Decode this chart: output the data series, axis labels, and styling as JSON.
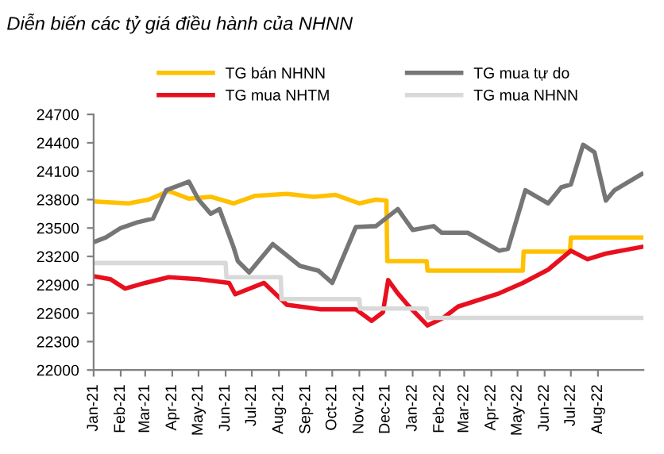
{
  "chart_data": {
    "type": "line",
    "title": "Diễn biến các tỷ giá điều hành của NHNN",
    "series": [
      {
        "name": "TG bán NHNN",
        "color": "#ffc000",
        "x": [
          "2021-01-01",
          "2021-02-10",
          "2021-03-05",
          "2021-03-28",
          "2021-04-20",
          "2021-05-15",
          "2021-06-10",
          "2021-07-05",
          "2021-08-10",
          "2021-09-10",
          "2021-10-05",
          "2021-11-01",
          "2021-11-20",
          "2021-12-02",
          "2021-12-03",
          "2022-01-17",
          "2022-01-18",
          "2022-05-07",
          "2022-05-08",
          "2022-06-30",
          "2022-07-01",
          "2022-09-20"
        ],
        "values": [
          23780,
          23760,
          23800,
          23890,
          23810,
          23830,
          23760,
          23840,
          23860,
          23830,
          23850,
          23760,
          23800,
          23790,
          23150,
          23150,
          23050,
          23050,
          23250,
          23250,
          23400,
          23400
        ]
      },
      {
        "name": "TG mua NHTM",
        "color": "#e8101f",
        "x": [
          "2021-01-01",
          "2021-01-20",
          "2021-02-06",
          "2021-03-01",
          "2021-03-28",
          "2021-05-01",
          "2021-06-05",
          "2021-06-12",
          "2021-07-15",
          "2021-08-10",
          "2021-09-18",
          "2021-10-28",
          "2021-11-15",
          "2021-11-28",
          "2021-12-04",
          "2021-12-15",
          "2021-12-28",
          "2022-01-18",
          "2022-02-05",
          "2022-02-22",
          "2022-04-10",
          "2022-05-07",
          "2022-06-05",
          "2022-07-01",
          "2022-07-20",
          "2022-08-10",
          "2022-09-20"
        ],
        "values": [
          22990,
          22960,
          22860,
          22920,
          22980,
          22960,
          22920,
          22800,
          22920,
          22690,
          22640,
          22640,
          22520,
          22610,
          22950,
          22810,
          22670,
          22470,
          22550,
          22670,
          22810,
          22920,
          23060,
          23260,
          23170,
          23230,
          23300
        ]
      },
      {
        "name": "TG mua tự do",
        "color": "#767676",
        "x": [
          "2021-01-01",
          "2021-01-15",
          "2021-02-01",
          "2021-02-20",
          "2021-03-10",
          "2021-03-25",
          "2021-04-20",
          "2021-05-01",
          "2021-05-15",
          "2021-05-25",
          "2021-06-10",
          "2021-06-15",
          "2021-06-28",
          "2021-07-25",
          "2021-08-25",
          "2021-09-15",
          "2021-10-01",
          "2021-10-28",
          "2021-11-20",
          "2021-12-15",
          "2022-01-01",
          "2022-01-25",
          "2022-02-03",
          "2022-03-05",
          "2022-04-10",
          "2022-04-20",
          "2022-05-10",
          "2022-06-05",
          "2022-06-20",
          "2022-07-01",
          "2022-07-15",
          "2022-07-28",
          "2022-08-10",
          "2022-08-20",
          "2022-09-20"
        ],
        "values": [
          23350,
          23400,
          23500,
          23560,
          23600,
          23900,
          23990,
          23800,
          23650,
          23700,
          23300,
          23150,
          23030,
          23330,
          23100,
          23050,
          22920,
          23510,
          23520,
          23700,
          23480,
          23520,
          23450,
          23450,
          23260,
          23280,
          23900,
          23760,
          23930,
          23960,
          24380,
          24300,
          23790,
          23900,
          24070
        ]
      },
      {
        "name": "TG mua NHNN",
        "color": "#d9d9d9",
        "x": [
          "2021-01-01",
          "2021-06-01",
          "2021-06-02",
          "2021-08-03",
          "2021-08-04",
          "2021-11-01",
          "2021-11-02",
          "2022-01-17",
          "2022-01-18",
          "2022-09-20"
        ],
        "values": [
          23130,
          23130,
          22980,
          22980,
          22750,
          22750,
          22650,
          22650,
          22550,
          22550
        ]
      }
    ],
    "xlim": [
      "2021-01-01",
      "2022-09-22"
    ],
    "xticks": [
      {
        "value": "2021-01-01",
        "label": "Jan-21"
      },
      {
        "value": "2021-02-01",
        "label": "Feb-21"
      },
      {
        "value": "2021-03-01",
        "label": "Mar-21"
      },
      {
        "value": "2021-04-01",
        "label": "Apr-21"
      },
      {
        "value": "2021-05-01",
        "label": "May-21"
      },
      {
        "value": "2021-06-01",
        "label": "Jun-21"
      },
      {
        "value": "2021-07-01",
        "label": "Jul-21"
      },
      {
        "value": "2021-08-01",
        "label": "Aug-21"
      },
      {
        "value": "2021-09-01",
        "label": "Sep-21"
      },
      {
        "value": "2021-10-01",
        "label": "Oct-21"
      },
      {
        "value": "2021-11-01",
        "label": "Nov-21"
      },
      {
        "value": "2021-12-01",
        "label": "Dec-21"
      },
      {
        "value": "2022-01-01",
        "label": "Jan-22"
      },
      {
        "value": "2022-02-01",
        "label": "Feb-22"
      },
      {
        "value": "2022-03-01",
        "label": "Mar-22"
      },
      {
        "value": "2022-04-01",
        "label": "Apr-22"
      },
      {
        "value": "2022-05-01",
        "label": "May-22"
      },
      {
        "value": "2022-06-01",
        "label": "Jun-22"
      },
      {
        "value": "2022-07-01",
        "label": "Jul-22"
      },
      {
        "value": "2022-08-01",
        "label": "Aug-22"
      }
    ],
    "ylim": [
      22000,
      24700
    ],
    "yticks": [
      22000,
      22300,
      22600,
      22900,
      23200,
      23500,
      23800,
      24100,
      24400,
      24700
    ],
    "grid": false,
    "legend": "top",
    "marker": "none",
    "line_style": "solid"
  }
}
